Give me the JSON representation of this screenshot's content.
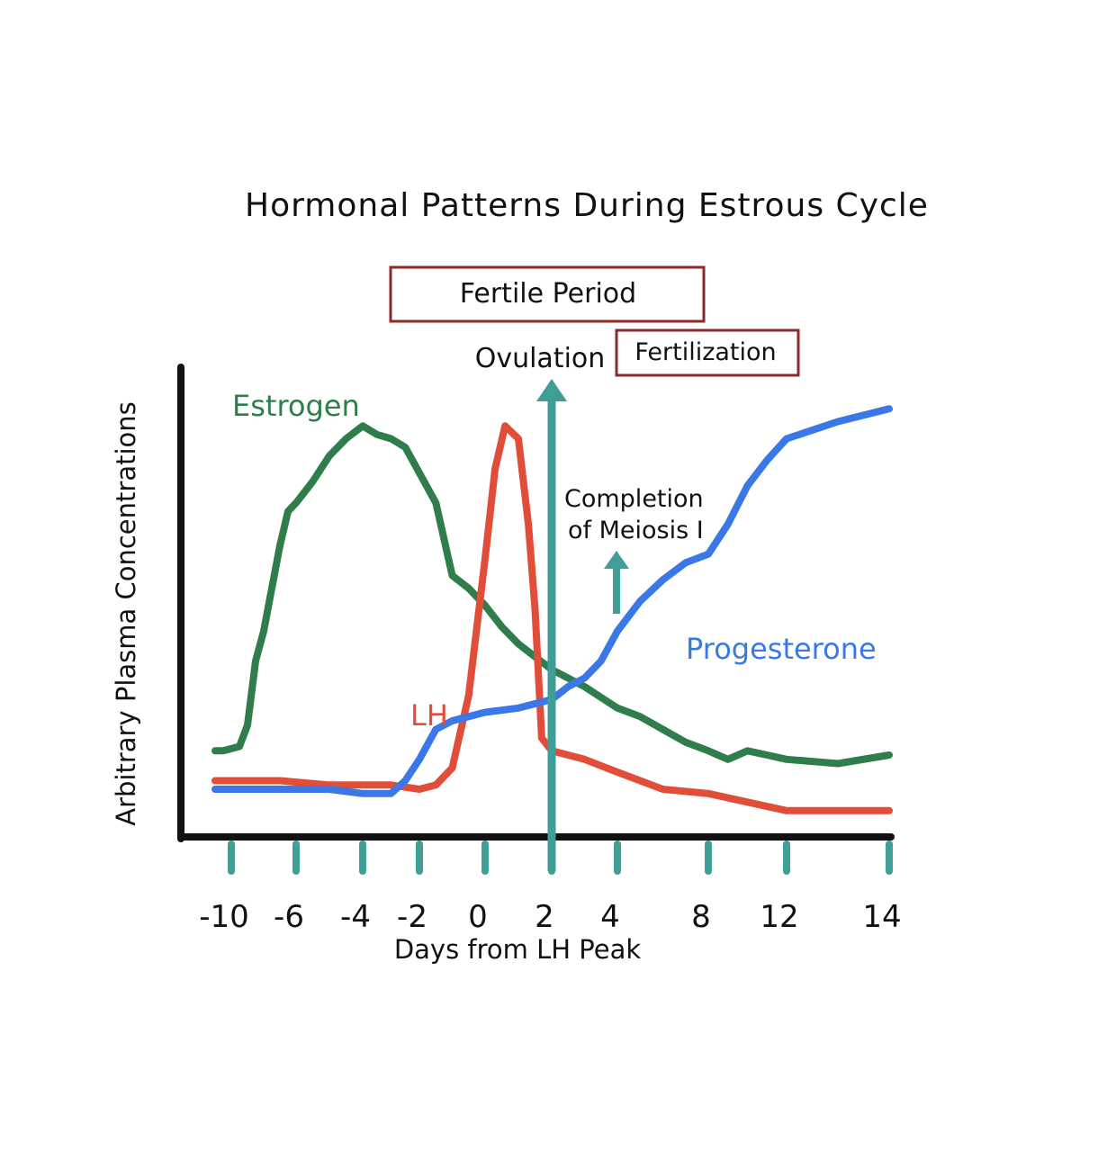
{
  "chart_data": {
    "type": "line",
    "title": "Hormonal Patterns During Estrous Cycle",
    "xlabel": "Days from LH Peak",
    "ylabel": "Arbitrary Plasma Concentrations",
    "xlim": [
      -12,
      15
    ],
    "ylim": [
      0,
      100
    ],
    "x_ticks": [
      -10,
      -6,
      -4,
      -2,
      0,
      2,
      4,
      8,
      12,
      14
    ],
    "tick_labels": [
      "-10",
      "-6",
      "-4",
      "-2",
      "0",
      "2",
      "4",
      "8",
      "12",
      "14"
    ],
    "grid": false,
    "series": [
      {
        "name": "Estrogen",
        "color": "#2e7d4b",
        "x": [
          -11,
          -10.5,
          -9.5,
          -9,
          -8.5,
          -8,
          -7.5,
          -7,
          -6.5,
          -6,
          -5.5,
          -5,
          -4.5,
          -4,
          -3.5,
          -3,
          -2.5,
          -2,
          -1.5,
          -1,
          -0.5,
          0,
          0.5,
          1,
          1.5,
          2,
          3,
          4,
          5,
          6,
          7,
          8,
          9,
          10,
          11,
          12,
          13,
          14
        ],
        "values": [
          17,
          17,
          18,
          23,
          38,
          45,
          55,
          65,
          73,
          75,
          80,
          86,
          90,
          93,
          91,
          90,
          88,
          82,
          75,
          58,
          55,
          51,
          46,
          42,
          39,
          36,
          32,
          27,
          25,
          22,
          19,
          17,
          15,
          17,
          16,
          15,
          14,
          16
        ]
      },
      {
        "name": "LH",
        "color": "#e04e3a",
        "x": [
          -11,
          -9,
          -7,
          -5,
          -3,
          -2,
          -1.5,
          -1,
          -0.5,
          0,
          0.3,
          0.6,
          1,
          1.3,
          1.5,
          1.7,
          2,
          3,
          4,
          6,
          8,
          10,
          12,
          13,
          14
        ],
        "values": [
          10,
          10,
          10,
          9,
          9,
          8,
          9,
          13,
          30,
          62,
          83,
          93,
          90,
          70,
          50,
          20,
          17,
          15,
          12,
          8,
          7,
          5,
          3,
          3,
          3
        ]
      },
      {
        "name": "Progesterone",
        "color": "#3a78e8",
        "x": [
          -11,
          -9,
          -7,
          -5,
          -4,
          -3,
          -2.5,
          -2,
          -1.5,
          -1,
          0,
          1,
          2,
          2.5,
          3,
          3.5,
          4,
          5,
          6,
          7,
          8,
          9,
          10,
          11,
          12,
          13,
          14
        ],
        "values": [
          8,
          8,
          8,
          8,
          7,
          7,
          10,
          15,
          22,
          24,
          26,
          27,
          29,
          32,
          34,
          38,
          45,
          52,
          57,
          61,
          63,
          70,
          79,
          85,
          90,
          94,
          97
        ]
      }
    ],
    "annotations": {
      "fertile_period": "Fertile Period",
      "ovulation": "Ovulation",
      "fertilization": "Fertilization",
      "meiosis_line1": "Completion",
      "meiosis_line2": "of Meiosis I"
    },
    "colors": {
      "axis": "#111111",
      "marker": "#3f9e95",
      "box": "#8b2a2a"
    }
  }
}
